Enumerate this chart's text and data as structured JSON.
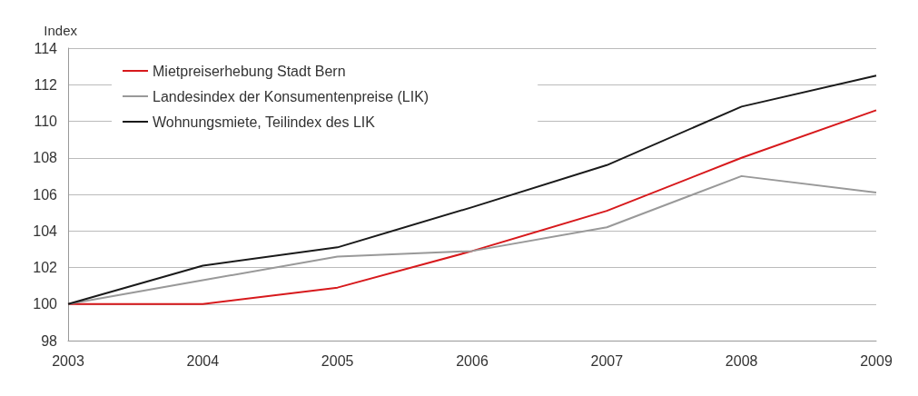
{
  "chart_data": {
    "type": "line",
    "ylabel": "Index",
    "x": [
      2003,
      2004,
      2005,
      2006,
      2007,
      2008,
      2009
    ],
    "series": [
      {
        "name": "Mietpreiserhebung Stadt Bern",
        "color": "#d7191c",
        "values": [
          100,
          100,
          100.9,
          102.9,
          105.1,
          108,
          110.6
        ]
      },
      {
        "name": "Landesindex der Konsumentenpreise (LIK)",
        "color": "#999999",
        "values": [
          100,
          101.3,
          102.6,
          102.9,
          104.2,
          107,
          106.1
        ]
      },
      {
        "name": "Wohnungsmiete, Teilindex des LIK",
        "color": "#1a1a1a",
        "values": [
          100,
          102.1,
          103.1,
          105.3,
          107.6,
          110.8,
          112.5
        ]
      }
    ],
    "xlim": [
      2003,
      2009
    ],
    "xticks": [
      2003,
      2004,
      2005,
      2006,
      2007,
      2008,
      2009
    ],
    "ylim": [
      98,
      114
    ],
    "yticks": [
      98,
      100,
      102,
      104,
      106,
      108,
      110,
      112,
      114
    ],
    "grid": "y",
    "legend": "top left",
    "marker": "none",
    "line_style": "solid"
  }
}
